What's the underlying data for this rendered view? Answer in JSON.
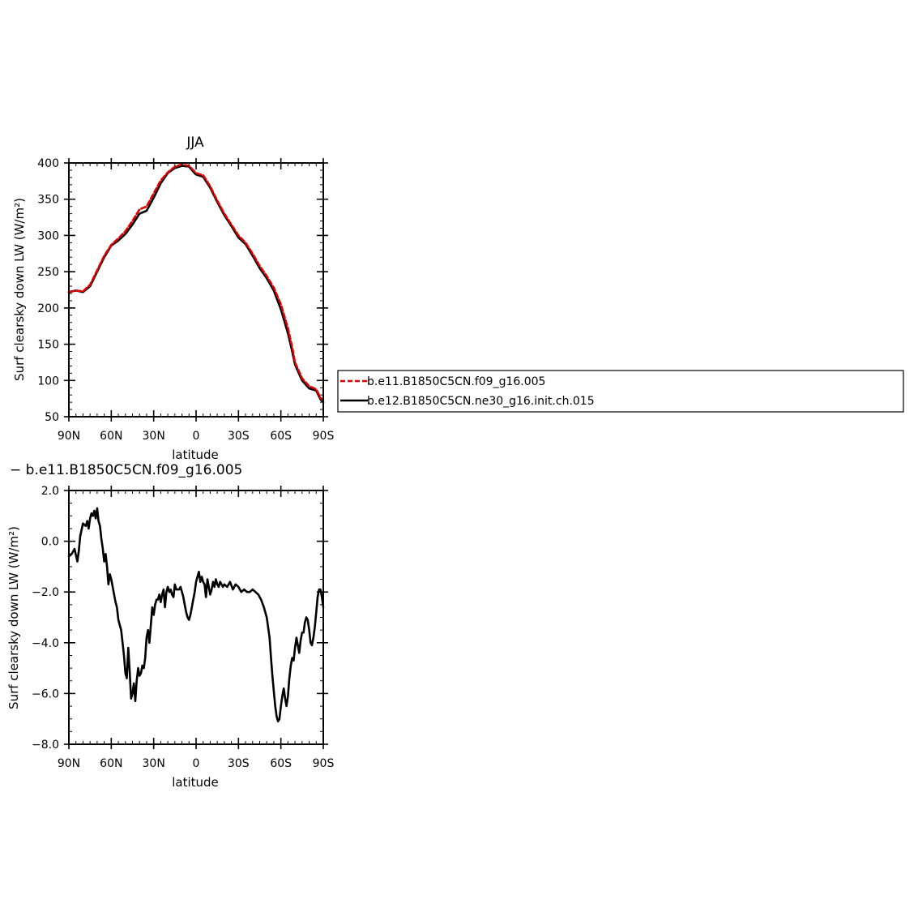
{
  "colors": {
    "model_a": "#e00000",
    "model_b": "#000000",
    "difference": "#000000"
  },
  "chart_data": [
    {
      "type": "line",
      "title": "JJA",
      "xlabel": "latitude",
      "ylabel": "Surf clearsky down LW (W/m²)",
      "xlim": [
        90,
        -90
      ],
      "ylim": [
        50,
        400
      ],
      "xticks": [
        90,
        60,
        30,
        0,
        -30,
        -60,
        -90
      ],
      "xtick_labels": [
        "90N",
        "60N",
        "30N",
        "0",
        "30S",
        "60S",
        "90S"
      ],
      "yticks": [
        50,
        100,
        150,
        200,
        250,
        300,
        350,
        400
      ],
      "ytick_labels": [
        "50",
        "100",
        "150",
        "200",
        "250",
        "300",
        "350",
        "400"
      ],
      "legend_position": "right",
      "series": [
        {
          "name": "b.e11.B1850C5CN.f09_g16.005",
          "style": "dashed",
          "color": "#e00000",
          "x": [
            90,
            85,
            80,
            75,
            70,
            65,
            60,
            55,
            50,
            45,
            40,
            35,
            30,
            25,
            20,
            15,
            10,
            5,
            2,
            0,
            -5,
            -10,
            -15,
            -20,
            -25,
            -30,
            -35,
            -40,
            -45,
            -50,
            -55,
            -60,
            -65,
            -68,
            -70,
            -75,
            -80,
            -85,
            -88,
            -90
          ],
          "y": [
            222,
            224,
            223,
            232,
            252,
            272,
            287,
            296,
            306,
            320,
            336,
            340,
            358,
            376,
            387,
            395,
            398,
            396,
            390,
            386,
            383,
            368,
            348,
            330,
            315,
            300,
            290,
            275,
            258,
            244,
            228,
            205,
            172,
            146,
            125,
            103,
            92,
            88,
            76,
            72
          ]
        },
        {
          "name": "b.e12.B1850C5CN.ne30_g16.init.ch.015",
          "style": "solid",
          "color": "#000000",
          "x": [
            90,
            85,
            80,
            75,
            70,
            65,
            60,
            55,
            50,
            45,
            40,
            35,
            30,
            25,
            20,
            15,
            10,
            5,
            2,
            0,
            -5,
            -10,
            -15,
            -20,
            -25,
            -30,
            -35,
            -40,
            -45,
            -50,
            -55,
            -60,
            -65,
            -68,
            -70,
            -75,
            -80,
            -85,
            -88,
            -90
          ],
          "y": [
            222,
            224,
            222,
            230,
            250,
            270,
            286,
            293,
            302,
            315,
            330,
            334,
            352,
            372,
            386,
            393,
            396,
            395,
            388,
            384,
            381,
            366,
            346,
            328,
            313,
            297,
            288,
            272,
            255,
            241,
            224,
            198,
            165,
            140,
            122,
            100,
            89,
            86,
            74,
            70
          ]
        }
      ]
    },
    {
      "type": "line",
      "title": "− b.e11.B1850C5CN.f09_g16.005",
      "xlabel": "latitude",
      "ylabel": "Surf clearsky down LW (W/m²)",
      "xlim": [
        90,
        -90
      ],
      "ylim": [
        -8.0,
        2.0
      ],
      "xticks": [
        90,
        60,
        30,
        0,
        -30,
        -60,
        -90
      ],
      "xtick_labels": [
        "90N",
        "60N",
        "30N",
        "0",
        "30S",
        "60S",
        "90S"
      ],
      "yticks": [
        -8,
        -6,
        -4,
        -2,
        0,
        2
      ],
      "ytick_labels": [
        "−8.0",
        "−6.0",
        "−4.0",
        "−2.0",
        "0.0",
        "2.0"
      ],
      "series": [
        {
          "style": "solid",
          "color": "#000000",
          "x": [
            90,
            88,
            86,
            84,
            83,
            82,
            80,
            78,
            77,
            76,
            75,
            74,
            73,
            72,
            71,
            70,
            69,
            68,
            67,
            66,
            65,
            64,
            63,
            62,
            61,
            60,
            59,
            58,
            57,
            56,
            55,
            54,
            53,
            52,
            51,
            50,
            49,
            48,
            47,
            46,
            45,
            44,
            43,
            42,
            41,
            40,
            39,
            38,
            37,
            36,
            35,
            34,
            33,
            32,
            31,
            30,
            29,
            28,
            27,
            26,
            25,
            24,
            23,
            22,
            21,
            20,
            19,
            18,
            17,
            16,
            15,
            14,
            13,
            12,
            11,
            10,
            9,
            8,
            7,
            6,
            5,
            4,
            3,
            2,
            1,
            0,
            -1,
            -2,
            -3,
            -4,
            -5,
            -6,
            -7,
            -8,
            -9,
            -10,
            -11,
            -12,
            -13,
            -14,
            -15,
            -16,
            -17,
            -18,
            -19,
            -20,
            -22,
            -24,
            -26,
            -28,
            -30,
            -32,
            -34,
            -36,
            -38,
            -40,
            -42,
            -44,
            -46,
            -48,
            -50,
            -52,
            -53,
            -54,
            -55,
            -56,
            -57,
            -58,
            -59,
            -60,
            -61,
            -62,
            -63,
            -64,
            -65,
            -66,
            -67,
            -68,
            -69,
            -70,
            -71,
            -72,
            -73,
            -74,
            -75,
            -76,
            -77,
            -78,
            -79,
            -80,
            -81,
            -82,
            -83,
            -84,
            -85,
            -86,
            -87,
            -88,
            -89,
            -90
          ],
          "y": [
            -0.6,
            -0.5,
            -0.3,
            -0.8,
            -0.4,
            0.2,
            0.7,
            0.6,
            0.8,
            0.5,
            0.9,
            1.1,
            1.0,
            1.2,
            0.9,
            1.3,
            0.8,
            0.6,
            0.1,
            -0.3,
            -0.8,
            -0.5,
            -1.0,
            -1.7,
            -1.3,
            -1.5,
            -1.8,
            -2.1,
            -2.4,
            -2.6,
            -3.1,
            -3.3,
            -3.5,
            -4.0,
            -4.5,
            -5.2,
            -5.4,
            -4.2,
            -5.1,
            -6.2,
            -6.0,
            -5.6,
            -6.3,
            -5.5,
            -5.0,
            -5.3,
            -5.2,
            -4.9,
            -5.0,
            -4.6,
            -3.8,
            -3.5,
            -4.0,
            -3.3,
            -2.6,
            -2.9,
            -2.5,
            -2.3,
            -2.3,
            -2.1,
            -2.4,
            -2.1,
            -1.9,
            -2.6,
            -2.0,
            -1.8,
            -2.0,
            -1.9,
            -2.1,
            -2.2,
            -1.7,
            -1.9,
            -1.9,
            -1.9,
            -1.8,
            -2.0,
            -2.2,
            -2.5,
            -2.8,
            -3.0,
            -3.1,
            -2.9,
            -2.6,
            -2.3,
            -2.0,
            -1.6,
            -1.4,
            -1.2,
            -1.6,
            -1.4,
            -1.6,
            -1.7,
            -2.2,
            -1.5,
            -1.8,
            -2.1,
            -1.9,
            -1.6,
            -1.8,
            -1.5,
            -1.7,
            -1.8,
            -1.6,
            -1.7,
            -1.8,
            -1.7,
            -1.8,
            -1.6,
            -1.9,
            -1.7,
            -1.8,
            -2.0,
            -1.9,
            -2.0,
            -2.0,
            -1.9,
            -2.0,
            -2.1,
            -2.3,
            -2.6,
            -3.0,
            -3.8,
            -4.6,
            -5.3,
            -5.9,
            -6.5,
            -6.9,
            -7.1,
            -7.0,
            -6.5,
            -6.1,
            -5.8,
            -6.2,
            -6.5,
            -6.1,
            -5.4,
            -4.9,
            -4.6,
            -4.7,
            -4.2,
            -3.8,
            -4.1,
            -4.4,
            -3.9,
            -3.6,
            -3.6,
            -3.2,
            -3.0,
            -3.1,
            -3.5,
            -4.0,
            -4.1,
            -3.8,
            -3.4,
            -2.8,
            -2.2,
            -1.9,
            -1.9,
            -2.2,
            -2.6
          ]
        }
      ]
    }
  ]
}
